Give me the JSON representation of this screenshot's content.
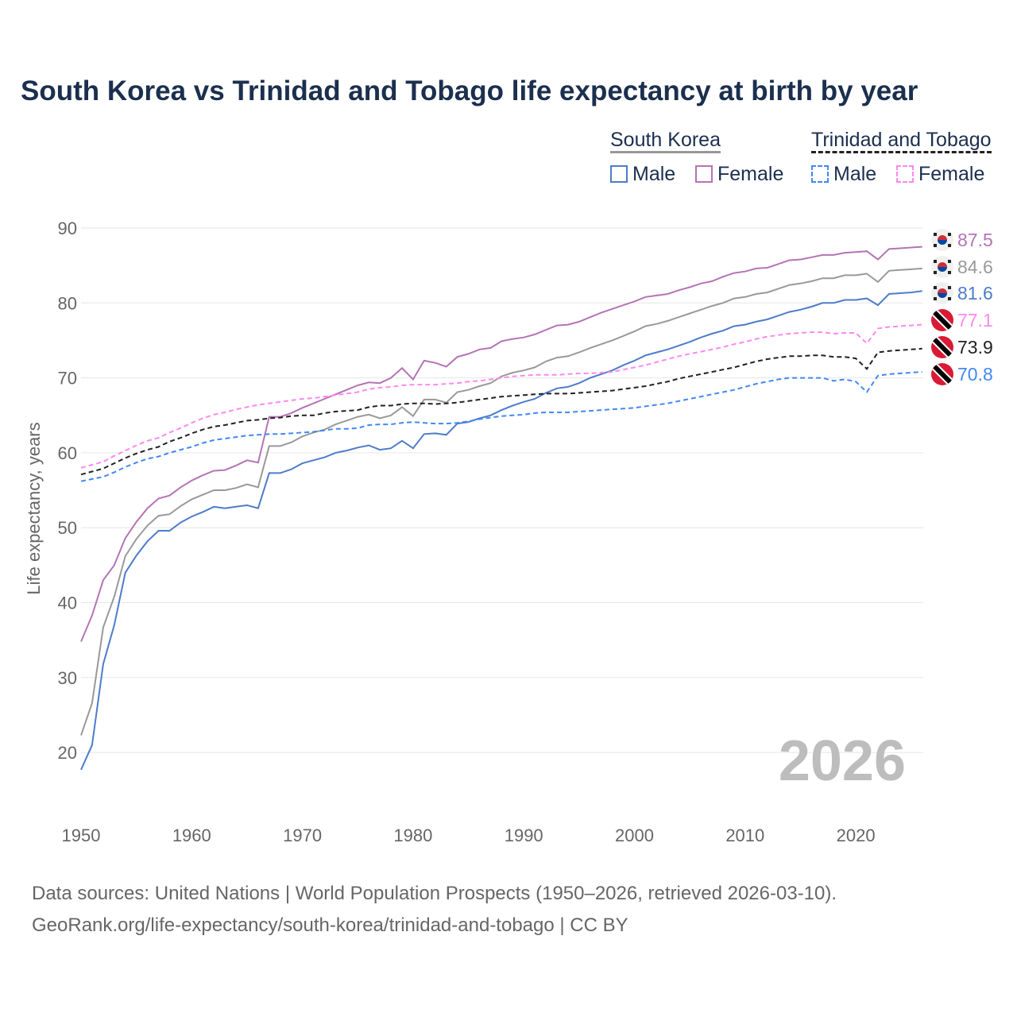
{
  "chart_data": {
    "type": "line",
    "title": "South Korea vs Trinidad and Tobago life expectancy at birth by year",
    "xlabel": "",
    "ylabel": "Life expectancy, years",
    "xlim": [
      1950,
      2026
    ],
    "ylim": [
      15,
      93
    ],
    "xticks": [
      1950,
      1960,
      1970,
      1980,
      1990,
      2000,
      2010,
      2020
    ],
    "yticks": [
      20,
      30,
      40,
      50,
      60,
      70,
      80,
      90
    ],
    "grid": true,
    "year_watermark": "2026",
    "legend": {
      "placement": "top-right",
      "groups": [
        {
          "name": "South Korea",
          "items": [
            "Male",
            "Female"
          ]
        },
        {
          "name": "Trinidad and Tobago",
          "items": [
            "Male",
            "Female"
          ]
        }
      ]
    },
    "x_start": 1950,
    "series": [
      {
        "name": "South Korea Female",
        "country": "South Korea",
        "color": "#b574b5",
        "dashed": false,
        "end_label": "87.5",
        "values": [
          34.8,
          38.3,
          43,
          45,
          48.6,
          50.8,
          52.6,
          53.9,
          54.3,
          55.4,
          56.3,
          57,
          57.6,
          57.7,
          58.3,
          59,
          58.7,
          64.8,
          64.8,
          65.3,
          66,
          66.6,
          67.2,
          67.8,
          68.4,
          69,
          69.4,
          69.3,
          70,
          71.3,
          69.8,
          72.3,
          72,
          71.5,
          72.8,
          73.2,
          73.8,
          74,
          74.9,
          75.2,
          75.4,
          75.8,
          76.4,
          77,
          77.1,
          77.5,
          78.1,
          78.7,
          79.2,
          79.7,
          80.2,
          80.8,
          81,
          81.2,
          81.7,
          82.1,
          82.6,
          82.9,
          83.5,
          84,
          84.2,
          84.6,
          84.7,
          85.2,
          85.7,
          85.8,
          86.1,
          86.4,
          86.4,
          86.7,
          86.8,
          86.9,
          85.8,
          87.2,
          87.3,
          87.4,
          87.5
        ]
      },
      {
        "name": "South Korea Total",
        "country": "South Korea",
        "color": "#999999",
        "dashed": false,
        "end_label": "84.6",
        "values": [
          22.3,
          26.6,
          36.7,
          40.8,
          46.2,
          48.5,
          50.3,
          51.6,
          51.8,
          52.9,
          53.8,
          54.4,
          55,
          55,
          55.3,
          55.8,
          55.4,
          60.9,
          60.9,
          61.4,
          62.2,
          62.7,
          63.1,
          63.8,
          64.3,
          64.8,
          65.1,
          64.6,
          65,
          66.1,
          64.9,
          67.1,
          67.1,
          66.7,
          68.1,
          68.4,
          68.9,
          69.3,
          70.2,
          70.7,
          71,
          71.4,
          72.2,
          72.7,
          72.9,
          73.4,
          74,
          74.5,
          75,
          75.6,
          76.2,
          76.9,
          77.2,
          77.6,
          78.1,
          78.6,
          79.1,
          79.6,
          80,
          80.6,
          80.8,
          81.2,
          81.4,
          81.9,
          82.4,
          82.6,
          82.9,
          83.3,
          83.3,
          83.7,
          83.7,
          83.9,
          82.8,
          84.3,
          84.4,
          84.5,
          84.6
        ]
      },
      {
        "name": "South Korea Male",
        "country": "South Korea",
        "color": "#4d7cc9",
        "dashed": false,
        "end_label": "81.6",
        "values": [
          17.7,
          21,
          31.8,
          37,
          44,
          46.3,
          48.2,
          49.6,
          49.6,
          50.7,
          51.5,
          52.1,
          52.8,
          52.6,
          52.8,
          53,
          52.6,
          57.3,
          57.3,
          57.8,
          58.6,
          59,
          59.4,
          60,
          60.3,
          60.7,
          61,
          60.4,
          60.6,
          61.6,
          60.6,
          62.5,
          62.6,
          62.4,
          63.9,
          64.1,
          64.6,
          65,
          65.7,
          66.3,
          66.8,
          67.2,
          68,
          68.6,
          68.8,
          69.3,
          70,
          70.5,
          71,
          71.7,
          72.3,
          73,
          73.4,
          73.8,
          74.3,
          74.8,
          75.4,
          75.9,
          76.3,
          76.9,
          77.1,
          77.5,
          77.8,
          78.3,
          78.8,
          79.1,
          79.5,
          80,
          80,
          80.4,
          80.4,
          80.6,
          79.7,
          81.2,
          81.3,
          81.4,
          81.6
        ]
      },
      {
        "name": "Trinidad and Tobago Female",
        "country": "Trinidad and Tobago",
        "color": "#ff88f0",
        "dashed": true,
        "end_label": "77.1",
        "values": [
          58,
          58.4,
          58.8,
          59.6,
          60.3,
          61,
          61.6,
          62,
          62.7,
          63.3,
          64,
          64.6,
          65.1,
          65.4,
          65.8,
          66.1,
          66.4,
          66.6,
          66.8,
          67,
          67.2,
          67.3,
          67.5,
          67.7,
          67.9,
          68.1,
          68.5,
          68.7,
          68.8,
          69,
          69.1,
          69.1,
          69.1,
          69.2,
          69.3,
          69.5,
          69.6,
          69.8,
          70,
          70.2,
          70.3,
          70.4,
          70.4,
          70.4,
          70.5,
          70.6,
          70.6,
          70.7,
          70.8,
          71.1,
          71.4,
          71.7,
          72.1,
          72.5,
          72.9,
          73.2,
          73.5,
          73.8,
          74.1,
          74.5,
          74.8,
          75.2,
          75.5,
          75.7,
          75.9,
          76,
          76.1,
          76.1,
          75.9,
          76,
          76,
          74.6,
          76.6,
          76.8,
          76.9,
          77,
          77.1
        ]
      },
      {
        "name": "Trinidad and Tobago Total",
        "country": "Trinidad and Tobago",
        "color": "#222222",
        "dashed": true,
        "end_label": "73.9",
        "values": [
          57.1,
          57.5,
          57.9,
          58.6,
          59.3,
          59.9,
          60.4,
          60.8,
          61.5,
          62,
          62.6,
          63.1,
          63.5,
          63.7,
          64,
          64.3,
          64.4,
          64.6,
          64.7,
          64.9,
          65,
          65,
          65.3,
          65.5,
          65.6,
          65.7,
          66.1,
          66.3,
          66.3,
          66.5,
          66.6,
          66.6,
          66.5,
          66.6,
          66.7,
          66.9,
          67.1,
          67.3,
          67.5,
          67.6,
          67.7,
          67.8,
          67.9,
          67.9,
          67.9,
          68,
          68.1,
          68.2,
          68.3,
          68.5,
          68.7,
          68.9,
          69.2,
          69.5,
          69.9,
          70.2,
          70.5,
          70.8,
          71.1,
          71.4,
          71.8,
          72.2,
          72.5,
          72.7,
          72.9,
          72.9,
          73,
          73,
          72.8,
          72.8,
          72.6,
          71.2,
          73.4,
          73.6,
          73.7,
          73.8,
          73.9
        ]
      },
      {
        "name": "Trinidad and Tobago Male",
        "country": "Trinidad and Tobago",
        "color": "#4287f5",
        "dashed": true,
        "end_label": "70.8",
        "values": [
          56.2,
          56.5,
          56.8,
          57.4,
          58.1,
          58.7,
          59.2,
          59.5,
          60,
          60.4,
          60.8,
          61.3,
          61.7,
          61.9,
          62.1,
          62.3,
          62.4,
          62.5,
          62.5,
          62.6,
          62.7,
          62.8,
          63,
          63.2,
          63.2,
          63.3,
          63.7,
          63.8,
          63.8,
          64,
          64.1,
          64,
          63.9,
          63.9,
          64,
          64.2,
          64.5,
          64.7,
          64.9,
          65,
          65.1,
          65.3,
          65.4,
          65.4,
          65.4,
          65.5,
          65.6,
          65.7,
          65.8,
          65.9,
          66,
          66.2,
          66.4,
          66.6,
          66.9,
          67.2,
          67.5,
          67.8,
          68.1,
          68.4,
          68.8,
          69.2,
          69.5,
          69.8,
          70,
          70,
          70,
          70,
          69.6,
          69.8,
          69.5,
          68.1,
          70.3,
          70.5,
          70.6,
          70.7,
          70.8
        ]
      }
    ]
  },
  "source": {
    "line1": "Data sources: United Nations | World Population Prospects (1950–2026, retrieved 2026-03-10).",
    "line2": "GeoRank.org/life-expectancy/south-korea/trinidad-and-tobago | CC BY"
  }
}
